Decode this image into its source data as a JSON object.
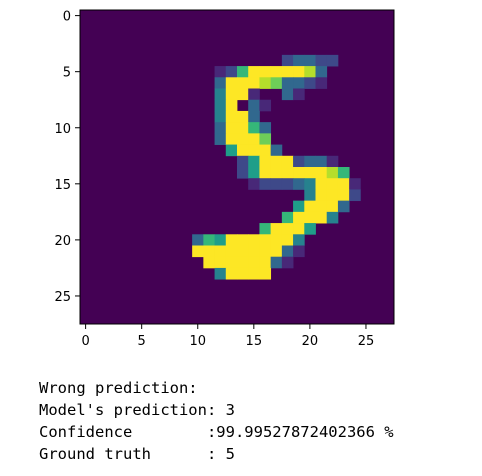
{
  "chart_data": {
    "type": "heatmap",
    "title": "",
    "xlabel": "",
    "ylabel": "",
    "colormap": "viridis",
    "xlim": [
      -0.5,
      27.5
    ],
    "ylim": [
      27.5,
      -0.5
    ],
    "xticks": [
      0,
      5,
      10,
      15,
      20,
      25
    ],
    "yticks": [
      0,
      5,
      10,
      15,
      20,
      25
    ],
    "xtick_labels": [
      "0",
      "5",
      "10",
      "15",
      "20",
      "25"
    ],
    "ytick_labels": [
      "0",
      "5",
      "10",
      "15",
      "20",
      "25"
    ],
    "grid": false,
    "rows": [
      "............................",
      "............................",
      "............................",
      "............................",
      "..................23322.....",
      "............1269999983......",
      "............3999873321......",
      "............4991..31........",
      "............49.31...........",
      "............4993............",
      "............39963...........",
      "............39997...........",
      ".............59993..........",
      "..............259992331.....",
      "..............2599999986....",
      "...............1222349991...",
      "....................49992...",
      "...................59993....",
      "..................69994.....",
      "................69995.......",
      "..........3659999994........",
      "..........9999999931........",
      "...........99999931.........",
      "............49999...........",
      "............................",
      "............................",
      "............................",
      "............................"
    ]
  },
  "output": {
    "lines": [
      "Wrong prediction:",
      "Model's prediction: 3",
      "Confidence        :99.99527872402366 %",
      "Ground truth      : 5"
    ]
  }
}
